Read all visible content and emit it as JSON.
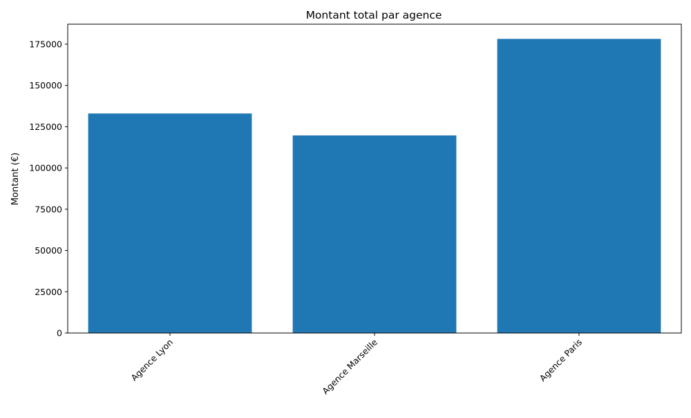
{
  "chart_data": {
    "type": "bar",
    "title": "Montant total par agence",
    "xlabel": "",
    "ylabel": "Montant (€)",
    "categories": [
      "Agence Lyon",
      "Agence Marseille",
      "Agence Paris"
    ],
    "values": [
      133000,
      119700,
      178200
    ],
    "ylim": [
      0,
      187110
    ],
    "yticks": [
      0,
      25000,
      50000,
      75000,
      100000,
      125000,
      150000,
      175000
    ],
    "x_tick_rotation_deg": 45,
    "grid": false,
    "legend": "none",
    "bar_color": "#1f77b4"
  }
}
